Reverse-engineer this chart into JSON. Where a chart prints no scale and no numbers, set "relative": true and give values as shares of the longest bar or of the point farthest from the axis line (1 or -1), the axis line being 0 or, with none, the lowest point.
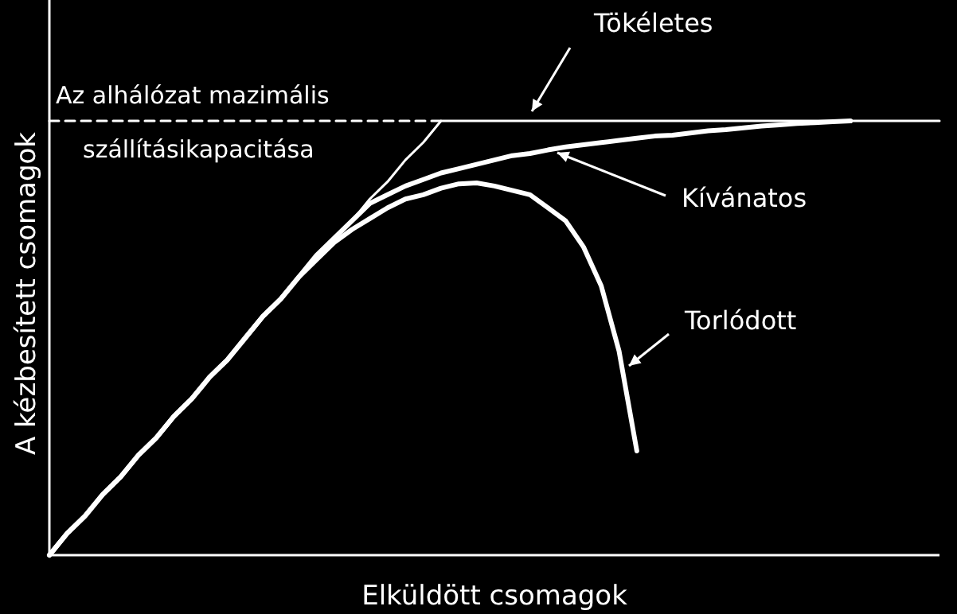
{
  "chart_data": {
    "type": "line",
    "relative": true,
    "xlabel": "Elküldött csomagok",
    "ylabel": "A kézbesített csomagok",
    "line_style": "solid",
    "categories": [
      null,
      null,
      null,
      null,
      null,
      null,
      null,
      null,
      null,
      null,
      null,
      null,
      null,
      null,
      null,
      null,
      null,
      null,
      null,
      null,
      null,
      null,
      null,
      null,
      null,
      null,
      null,
      null,
      null,
      null,
      null,
      null,
      null,
      null,
      null,
      null,
      null,
      null,
      null,
      null,
      null,
      null,
      null,
      null,
      null,
      null,
      null,
      null,
      null,
      null,
      null
    ],
    "series": [
      {
        "name": "Tökéletes",
        "color": "#ffffff",
        "values": [
          0,
          0.05,
          0.09,
          0.14,
          0.18,
          0.23,
          0.27,
          0.32,
          0.36,
          0.41,
          0.45,
          0.5,
          0.55,
          0.59,
          0.64,
          0.68,
          0.73,
          0.77,
          0.82,
          0.86,
          0.91,
          0.95,
          1,
          1,
          1,
          1,
          1,
          1,
          1,
          1,
          1,
          1,
          1,
          1,
          1,
          1,
          1,
          1,
          1,
          1,
          1,
          1,
          1,
          1,
          1,
          1,
          1,
          1,
          1,
          1,
          1
        ]
      },
      {
        "name": "Kívánatos",
        "color": "#ffffff",
        "values": [
          0,
          0.05,
          0.09,
          0.14,
          0.18,
          0.23,
          0.27,
          0.32,
          0.36,
          0.41,
          0.45,
          0.5,
          0.55,
          0.59,
          0.64,
          0.69,
          0.73,
          0.77,
          0.81,
          0.83,
          0.85,
          0.865,
          0.88,
          0.89,
          0.9,
          0.91,
          0.92,
          0.925,
          0.933,
          0.94,
          0.945,
          0.95,
          0.955,
          0.96,
          0.965,
          0.967,
          0.972,
          0.977,
          0.98,
          0.984,
          0.988,
          0.991,
          0.994,
          0.996,
          0.998,
          1,
          null,
          null,
          null,
          null,
          null
        ]
      },
      {
        "name": "Torlódott",
        "color": "#ffffff",
        "values": [
          0,
          0.05,
          0.09,
          0.14,
          0.18,
          0.23,
          0.27,
          0.32,
          0.36,
          0.41,
          0.45,
          0.5,
          0.55,
          0.59,
          0.64,
          0.68,
          0.72,
          0.75,
          0.775,
          0.8,
          0.82,
          0.83,
          0.845,
          0.855,
          0.857,
          0.85,
          0.84,
          0.83,
          0.8,
          0.77,
          0.71,
          0.62,
          0.47,
          0.24,
          null,
          null,
          null,
          null,
          null,
          null,
          null,
          null,
          null,
          null,
          null,
          null,
          null,
          null,
          null,
          null,
          null
        ]
      },
      {
        "color": "#ffffff",
        "line_style": "dashed",
        "values": [
          1,
          1,
          1,
          1,
          1,
          1,
          1,
          1,
          1,
          1,
          1,
          1,
          1,
          1,
          1,
          1,
          1,
          1,
          1,
          1,
          1,
          1,
          1,
          null,
          null,
          null,
          null,
          null,
          null,
          null,
          null,
          null,
          null,
          null,
          null,
          null,
          null,
          null,
          null,
          null,
          null,
          null,
          null,
          null,
          null,
          null,
          null,
          null,
          null,
          null,
          null
        ]
      }
    ],
    "annotations": [
      {
        "text": "Az alhálózat mazimális szállításikapacitása",
        "y": 1
      }
    ]
  }
}
